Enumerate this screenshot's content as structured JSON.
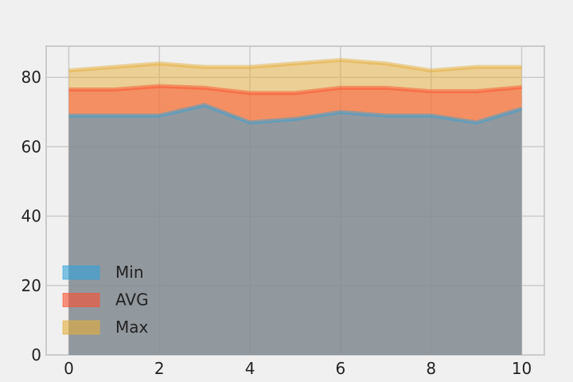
{
  "chart_data": {
    "type": "area",
    "title": "",
    "xlabel": "",
    "ylabel": "",
    "x": [
      0,
      1,
      2,
      3,
      4,
      5,
      6,
      7,
      8,
      9,
      10
    ],
    "xlim": [
      -0.5,
      10.5
    ],
    "ylim": [
      0,
      89
    ],
    "xticks": [
      0,
      2,
      4,
      6,
      8,
      10
    ],
    "yticks": [
      0,
      20,
      40,
      60,
      80
    ],
    "grid": true,
    "legend_position": "lower-left",
    "series": [
      {
        "name": "Max",
        "values": [
          82,
          83,
          84,
          83,
          83,
          84,
          85,
          84,
          82,
          83,
          83
        ],
        "color": "#e5ae38"
      },
      {
        "name": "AVG",
        "values": [
          76.5,
          76.5,
          77.5,
          77,
          75.5,
          75.5,
          77,
          77,
          76,
          76,
          77.2
        ],
        "color": "#fc4f30"
      },
      {
        "name": "Min",
        "values": [
          69,
          69,
          69,
          72,
          67,
          68,
          70,
          69,
          69,
          67,
          71
        ],
        "color": "#30a2da"
      }
    ],
    "legend": [
      {
        "name": "Min",
        "color": "#30a2da"
      },
      {
        "name": "AVG",
        "color": "#fc4f30"
      },
      {
        "name": "Max",
        "color": "#e5ae38"
      }
    ]
  }
}
